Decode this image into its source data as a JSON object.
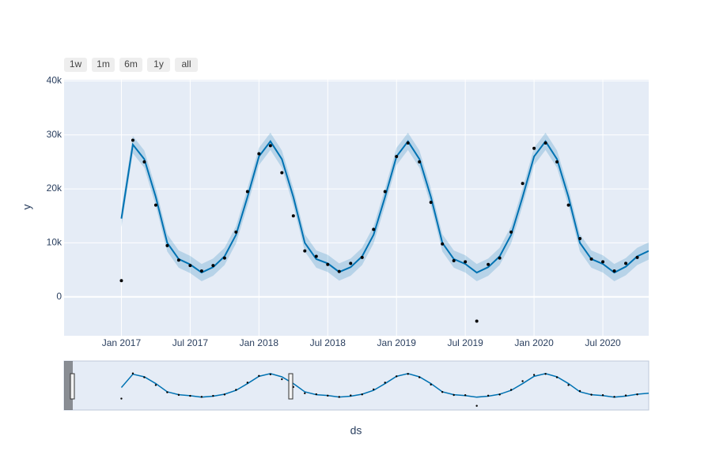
{
  "chart_data": {
    "type": "line",
    "xlabel": "ds",
    "ylabel": "y",
    "buttons": [
      "1w",
      "1m",
      "6m",
      "1y",
      "all"
    ],
    "xlim": [
      "2016-08",
      "2020-11"
    ],
    "xticks": [
      {
        "value": "2017-01",
        "label": "Jan 2017"
      },
      {
        "value": "2017-07",
        "label": "Jul 2017"
      },
      {
        "value": "2018-01",
        "label": "Jan 2018"
      },
      {
        "value": "2018-07",
        "label": "Jul 2018"
      },
      {
        "value": "2019-01",
        "label": "Jan 2019"
      },
      {
        "value": "2019-07",
        "label": "Jul 2019"
      },
      {
        "value": "2020-01",
        "label": "Jan 2020"
      },
      {
        "value": "2020-07",
        "label": "Jul 2020"
      }
    ],
    "ylim": [
      -7200,
      40200
    ],
    "yticks": [
      0,
      {
        "value": 10000,
        "label": "10k"
      },
      {
        "value": 20000,
        "label": "20k"
      },
      {
        "value": 30000,
        "label": "30k"
      },
      {
        "value": 40000,
        "label": "40k"
      }
    ],
    "grid": true,
    "x": [
      "2017-01",
      "2017-02",
      "2017-03",
      "2017-04",
      "2017-05",
      "2017-06",
      "2017-07",
      "2017-08",
      "2017-09",
      "2017-10",
      "2017-11",
      "2017-12",
      "2018-01",
      "2018-02",
      "2018-03",
      "2018-04",
      "2018-05",
      "2018-06",
      "2018-07",
      "2018-08",
      "2018-09",
      "2018-10",
      "2018-11",
      "2018-12",
      "2019-01",
      "2019-02",
      "2019-03",
      "2019-04",
      "2019-05",
      "2019-06",
      "2019-07",
      "2019-08",
      "2019-09",
      "2019-10",
      "2019-11",
      "2019-12",
      "2020-01",
      "2020-02",
      "2020-03",
      "2020-04",
      "2020-05",
      "2020-06",
      "2020-07",
      "2020-08",
      "2020-09",
      "2020-10",
      "2020-11"
    ],
    "series": [
      {
        "color": "#0072B2",
        "values": [
          14500,
          28200,
          25500,
          18500,
          10000,
          7000,
          6000,
          4500,
          5500,
          7500,
          11500,
          18500,
          26000,
          28800,
          25500,
          18500,
          10000,
          7000,
          6200,
          4600,
          5500,
          7500,
          11500,
          18500,
          26000,
          28800,
          25500,
          18500,
          10000,
          7000,
          6100,
          4500,
          5500,
          7500,
          11500,
          18500,
          26000,
          28800,
          25500,
          18500,
          10000,
          7000,
          6100,
          4500,
          5600,
          7500,
          8500
        ]
      }
    ],
    "band": {
      "color": "rgba(0,114,178,0.2)",
      "upper": [
        16100,
        29800,
        27100,
        20100,
        11600,
        8600,
        7600,
        6100,
        7100,
        9100,
        13100,
        20100,
        27600,
        30400,
        27100,
        20100,
        11600,
        8600,
        7800,
        6200,
        7100,
        9100,
        13100,
        20100,
        27600,
        30400,
        27100,
        20100,
        11600,
        8600,
        7700,
        6100,
        7100,
        9100,
        13100,
        20100,
        27600,
        30400,
        27100,
        20100,
        11600,
        8600,
        7700,
        6100,
        7200,
        9100,
        10100
      ],
      "lower": [
        12900,
        26600,
        23900,
        16900,
        8400,
        5400,
        4400,
        2900,
        3900,
        5900,
        9900,
        16900,
        24400,
        27200,
        23900,
        16900,
        8400,
        5400,
        4600,
        3000,
        3900,
        5900,
        9900,
        16900,
        24400,
        27200,
        23900,
        16900,
        8400,
        5400,
        4500,
        2900,
        3900,
        5900,
        9900,
        16900,
        24400,
        27200,
        23900,
        16900,
        8400,
        5400,
        4500,
        2900,
        4000,
        5900,
        6900
      ]
    },
    "points": {
      "color": "#000000",
      "x": [
        "2017-01",
        "2017-02",
        "2017-03",
        "2017-04",
        "2017-05",
        "2017-06",
        "2017-07",
        "2017-08",
        "2017-09",
        "2017-10",
        "2017-11",
        "2017-12",
        "2018-01",
        "2018-02",
        "2018-03",
        "2018-04",
        "2018-05",
        "2018-06",
        "2018-07",
        "2018-08",
        "2018-09",
        "2018-10",
        "2018-11",
        "2018-12",
        "2019-01",
        "2019-02",
        "2019-03",
        "2019-04",
        "2019-05",
        "2019-06",
        "2019-07",
        "2019-08",
        "2019-09",
        "2019-10",
        "2019-11",
        "2019-12",
        "2020-01",
        "2020-02",
        "2020-03",
        "2020-04",
        "2020-05",
        "2020-06",
        "2020-07",
        "2020-08",
        "2020-09",
        "2020-10"
      ],
      "values": [
        3000,
        29000,
        25000,
        17000,
        9500,
        6800,
        5800,
        4800,
        5800,
        7200,
        12000,
        19500,
        26500,
        28000,
        23000,
        15000,
        8500,
        7500,
        6000,
        4700,
        6200,
        7300,
        12500,
        19500,
        26000,
        28500,
        25000,
        17500,
        9800,
        6700,
        6500,
        -4500,
        6000,
        7200,
        12000,
        21000,
        27500,
        28500,
        25000,
        17000,
        10800,
        7000,
        6500,
        4800,
        6200,
        7300
      ]
    }
  }
}
